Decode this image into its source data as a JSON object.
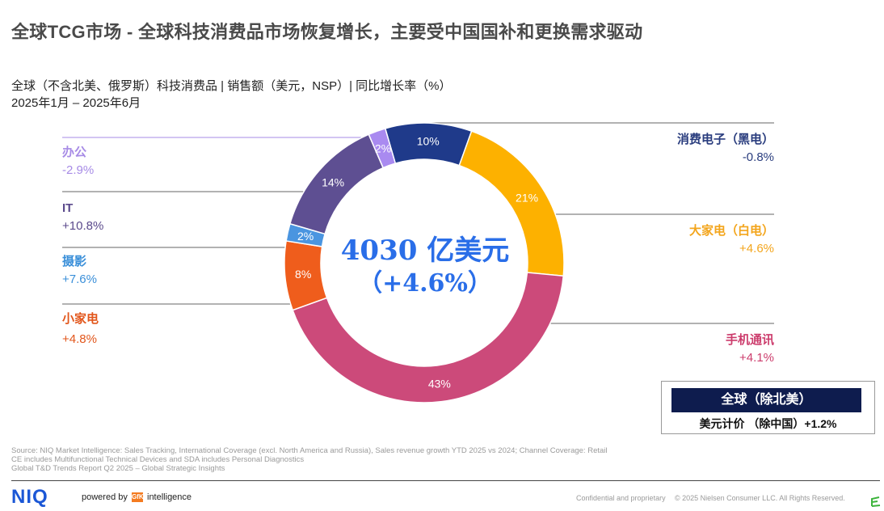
{
  "title": "全球TCG市场 - 全球科技消费品市场恢复增长，主要受中国国补和更换需求驱动",
  "subtitle": {
    "line1": "全球（不含北美、俄罗斯）科技消费品 | 销售额（美元，NSP）| 同比增长率（%）",
    "line2": "2025年1月 – 2025年6月"
  },
  "chart_data": {
    "type": "pie",
    "donut": true,
    "center_value": "4030 亿美元",
    "center_growth": "（+4.6%）",
    "slices": [
      {
        "name": "消费电子（黑电）",
        "share": 10,
        "label": "10%",
        "growth": "-0.8%",
        "color": "#1f3a8a"
      },
      {
        "name": "大家电（白电）",
        "share": 21,
        "label": "21%",
        "growth": "+4.6%",
        "color": "#fdb100"
      },
      {
        "name": "手机通讯",
        "share": 43,
        "label": "43%",
        "growth": "+4.1%",
        "color": "#cc4a7a"
      },
      {
        "name": "小家电",
        "share": 8,
        "label": "8%",
        "growth": "+4.8%",
        "color": "#ef5d1c"
      },
      {
        "name": "摄影",
        "share": 2,
        "label": "2%",
        "growth": "+7.6%",
        "color": "#4a95e0"
      },
      {
        "name": "IT",
        "share": 14,
        "label": "14%",
        "growth": "+10.8%",
        "color": "#5e4f92"
      },
      {
        "name": "办公",
        "share": 2,
        "label": "2%",
        "growth": "-2.9%",
        "color": "#a98af0"
      }
    ]
  },
  "legend_colors": {
    "black": "#2a3d7e",
    "white": "#f3a51c",
    "phone": "#cc3c6c",
    "small": "#e2561b",
    "photo": "#3a8fd9",
    "it": "#5b4a8c",
    "office": "#a78be6"
  },
  "summary_box": {
    "header": "全球（除北美）",
    "footer": "美元计价 （除中国）+1.2%"
  },
  "footer": {
    "source_lines": [
      "Source: NIQ Market Intelligence: Sales Tracking, International Coverage (excl. North America and Russia), Sales revenue growth YTD 2025 vs 2024; Channel Coverage: Retail",
      "CE includes Multifunctional Technical Devices and SDA includes Personal Diagnostics",
      "Global T&D Trends Report Q2 2025 – Global Strategic Insights"
    ],
    "logo_text": "NIQ",
    "powered_by": "powered by",
    "gfk": "GfK",
    "intelligence": "intelligence",
    "confidential": "Confidential and proprietary",
    "copyright": "© 2025 Nielsen Consumer LLC. All Rights Reserved."
  }
}
